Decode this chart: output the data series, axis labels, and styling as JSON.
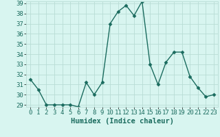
{
  "x": [
    0,
    1,
    2,
    3,
    4,
    5,
    6,
    7,
    8,
    9,
    10,
    11,
    12,
    13,
    14,
    15,
    16,
    17,
    18,
    19,
    20,
    21,
    22,
    23
  ],
  "y": [
    31.5,
    30.5,
    29,
    29,
    29,
    29,
    28.8,
    31.2,
    30,
    31.2,
    37,
    38.2,
    38.8,
    37.8,
    39.2,
    33,
    31,
    33.2,
    34.2,
    34.2,
    31.8,
    30.7,
    29.8,
    30
  ],
  "line_color": "#1a6b5e",
  "bg_color": "#d8f5f0",
  "grid_color": "#b8ddd5",
  "xlabel": "Humidex (Indice chaleur)",
  "ylim": [
    29,
    39
  ],
  "xlim": [
    -0.5,
    23.5
  ],
  "yticks": [
    29,
    30,
    31,
    32,
    33,
    34,
    35,
    36,
    37,
    38,
    39
  ],
  "xticks": [
    0,
    1,
    2,
    3,
    4,
    5,
    6,
    7,
    8,
    9,
    10,
    11,
    12,
    13,
    14,
    15,
    16,
    17,
    18,
    19,
    20,
    21,
    22,
    23
  ],
  "marker": "D",
  "markersize": 2.5,
  "linewidth": 1.0,
  "xlabel_fontsize": 7.5,
  "tick_fontsize": 6.5
}
